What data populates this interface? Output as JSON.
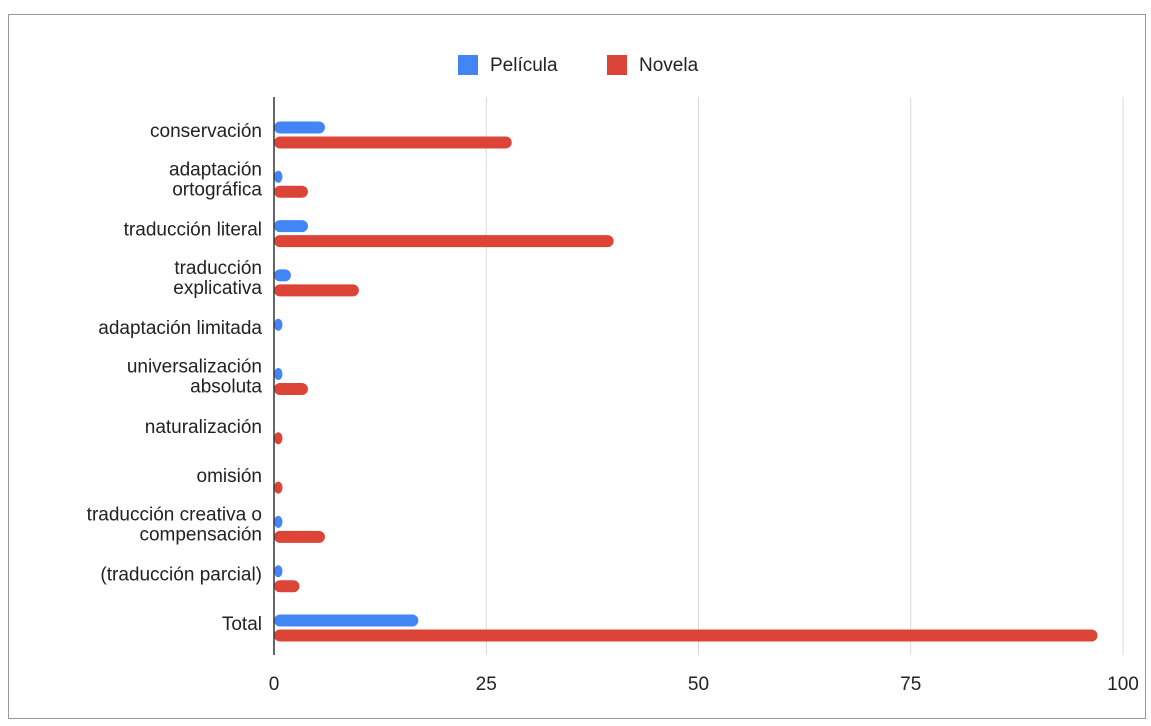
{
  "chart_data": {
    "type": "bar",
    "orientation": "horizontal",
    "categories": [
      "conservación",
      "adaptación ortográfica",
      "traducción literal",
      "traducción explicativa",
      "adaptación limitada",
      "universalización absoluta",
      "naturalización",
      "omisión",
      "traducción creativa o compensación",
      "(traducción parcial)",
      "Total"
    ],
    "series": [
      {
        "name": "Película",
        "color": "#4285f4",
        "values": [
          6,
          1,
          4,
          2,
          1,
          1,
          0,
          0,
          1,
          1,
          17
        ]
      },
      {
        "name": "Novela",
        "color": "#db4437",
        "values": [
          28,
          4,
          40,
          10,
          0,
          4,
          1,
          1,
          6,
          3,
          97
        ]
      }
    ],
    "xlim": [
      0,
      100
    ],
    "xticks": [
      "0",
      "25",
      "50",
      "75",
      "100"
    ],
    "grid": true,
    "legend_position": "top-center",
    "title": "",
    "xlabel": "",
    "ylabel": ""
  }
}
